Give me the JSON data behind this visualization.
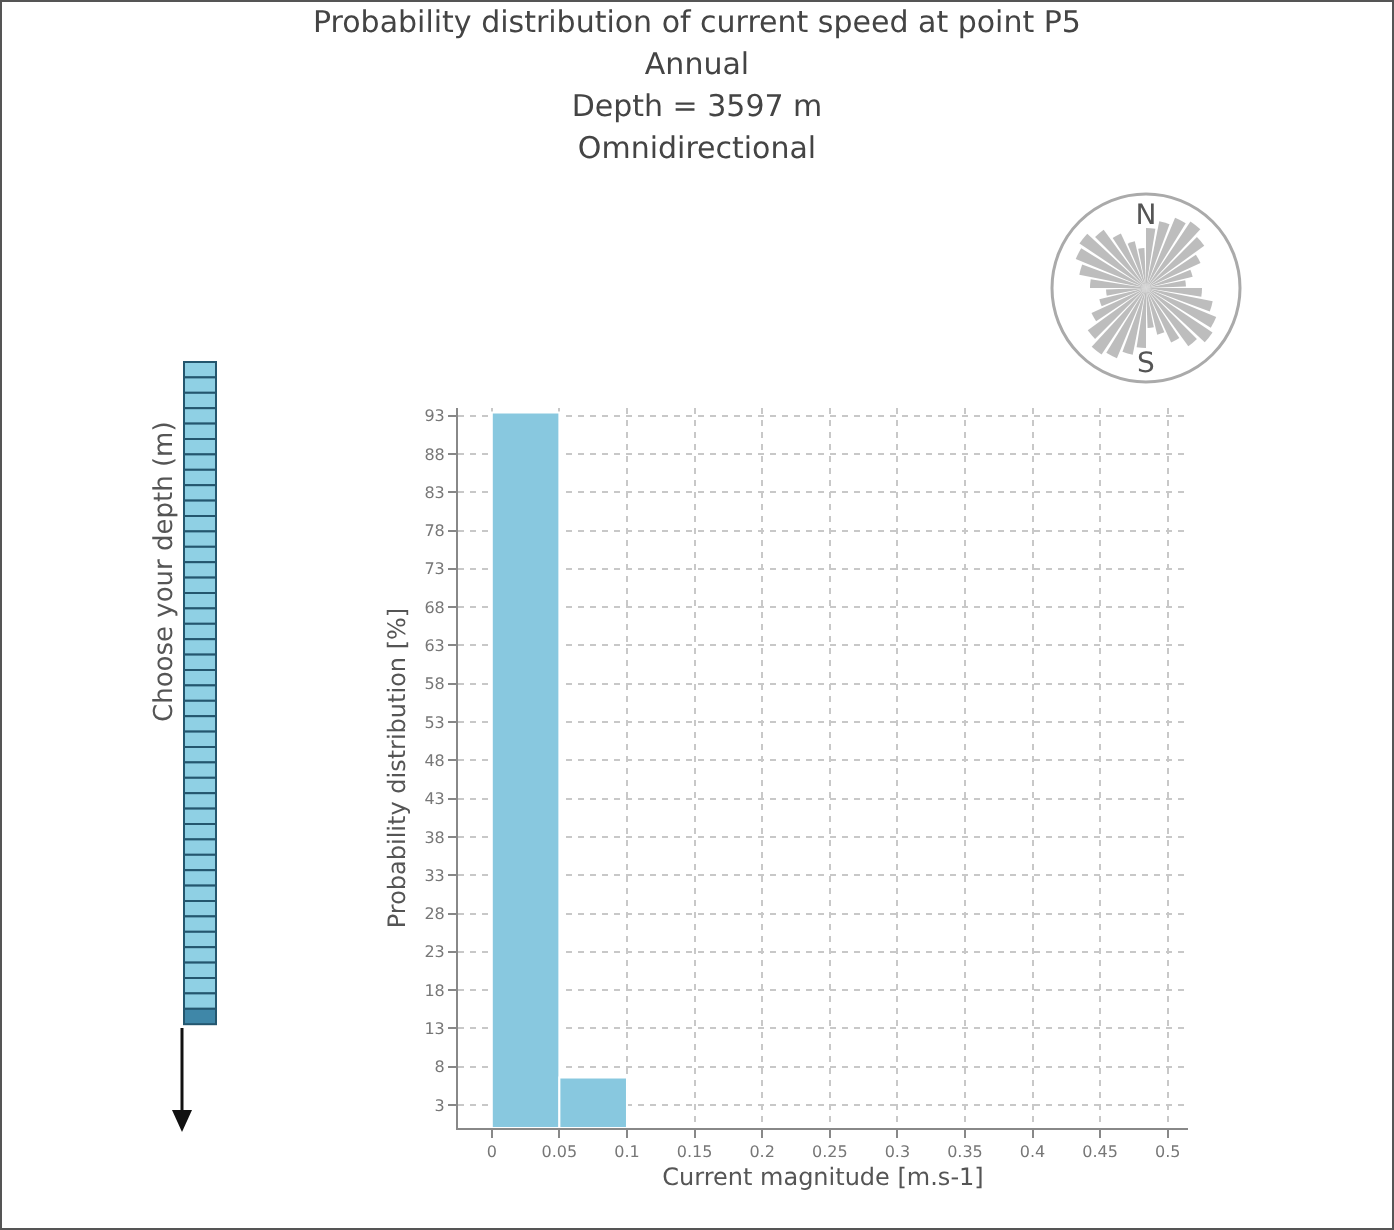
{
  "chart_data": {
    "type": "histogram",
    "title": "Probability distribution of current speed at point P5",
    "subtitle": "Annual\nDepth = 3597 m\nOmnidirectional",
    "xlabel": "Current magnitude [m.s-1]",
    "ylabel": "Probability distribution [%]",
    "bins": [
      0,
      0.05,
      0.1
    ],
    "values": [
      93.4,
      6.6
    ],
    "color": "#88c8df",
    "xlim": [
      -0.025,
      0.515
    ],
    "xticks": [
      0,
      0.05,
      0.1,
      0.15,
      0.2,
      0.25,
      0.3,
      0.35,
      0.4,
      0.45,
      0.5
    ],
    "ylim": [
      0,
      94
    ],
    "yticks": [
      3,
      8,
      13,
      18,
      23,
      28,
      33,
      38,
      43,
      48,
      53,
      58,
      63,
      68,
      73,
      78,
      83,
      88,
      93
    ],
    "grid": true,
    "annotations": [
      "Choose your depth (m)",
      "N",
      "S"
    ]
  }
}
